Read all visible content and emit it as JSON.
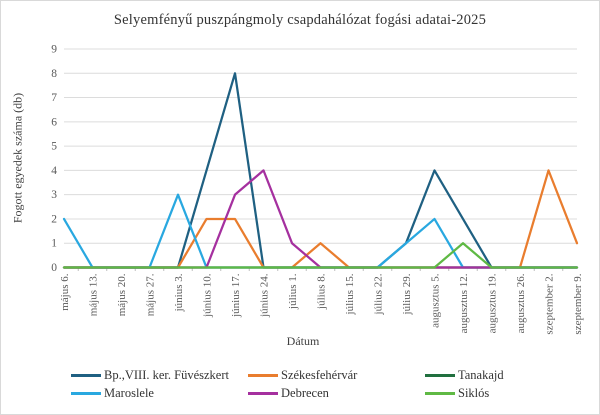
{
  "window": {
    "background": "#ffffff",
    "border_color": "#d9d9d9"
  },
  "chart_data": {
    "type": "line",
    "title": "Selyemfényű puszpángmoly csapdahálózat fogási adatai-2025",
    "xlabel": "Dátum",
    "ylabel": "Fogott egyedek száma (db)",
    "ylim": [
      0,
      9
    ],
    "ytick_step": 1,
    "grid": "horizontal",
    "gridline_color": "#dcdcdc",
    "tick_mark_color": "#bfbfbf",
    "tick_label_color": "#595959",
    "legend_position": "bottom",
    "categories": [
      "május 6.",
      "május 13.",
      "május 20.",
      "május 27.",
      "június 3.",
      "június 10.",
      "június 17.",
      "június 24.",
      "július 1.",
      "július 8.",
      "július 15.",
      "július 22.",
      "július 29.",
      "augusztus 5.",
      "augusztus 12.",
      "augusztus 19.",
      "augusztus 26.",
      "szeptember 2.",
      "szeptember 9."
    ],
    "series": [
      {
        "name": "Bp.,VIII. ker. Füvészkert",
        "color": "#1f6082",
        "values": [
          0,
          0,
          0,
          0,
          0,
          4,
          8,
          0,
          0,
          0,
          0,
          0,
          1,
          4,
          2,
          0,
          0,
          0,
          0
        ]
      },
      {
        "name": "Székesfehérvár",
        "color": "#e97d2e",
        "values": [
          0,
          0,
          0,
          0,
          0,
          2,
          2,
          0,
          0,
          1,
          0,
          0,
          0,
          0,
          0,
          0,
          0,
          4,
          1
        ]
      },
      {
        "name": "Tanakajd",
        "color": "#21703f",
        "values": [
          0,
          0,
          0,
          0,
          0,
          0,
          0,
          0,
          0,
          0,
          0,
          0,
          0,
          0,
          0,
          0,
          0,
          0,
          0
        ]
      },
      {
        "name": "Maroslele",
        "color": "#29a8e0",
        "values": [
          2,
          0,
          0,
          0,
          3,
          0,
          0,
          0,
          0,
          0,
          0,
          0,
          1,
          2,
          0,
          0,
          0,
          0,
          0
        ]
      },
      {
        "name": "Debrecen",
        "color": "#a5309f",
        "values": [
          0,
          0,
          0,
          0,
          0,
          0,
          3,
          4,
          1,
          0,
          0,
          0,
          0,
          0,
          0,
          0,
          0,
          0,
          0
        ]
      },
      {
        "name": "Siklós",
        "color": "#5fb944",
        "values": [
          0,
          0,
          0,
          0,
          0,
          0,
          0,
          0,
          0,
          0,
          0,
          0,
          0,
          0,
          1,
          0,
          0,
          0,
          0
        ]
      }
    ]
  }
}
